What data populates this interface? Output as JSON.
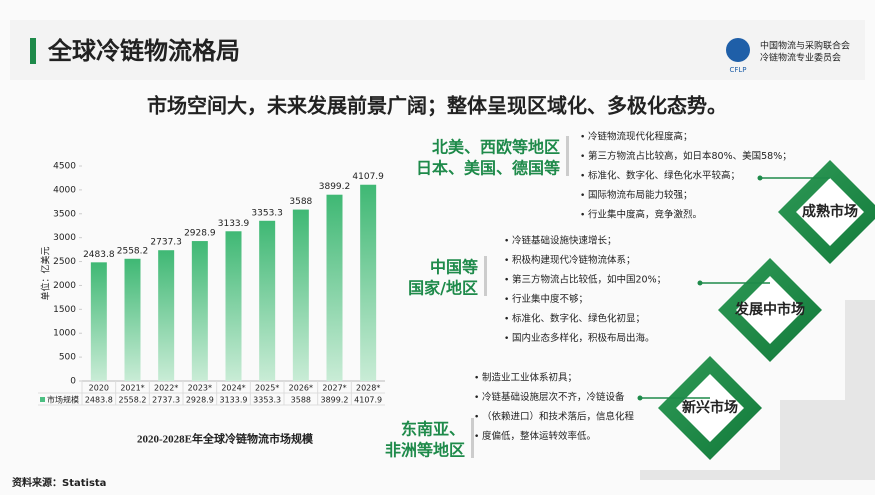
{
  "header": {
    "title": "全球冷链物流格局",
    "logo": {
      "mark": "CFLP",
      "line1": "中国物流与采购联合会",
      "line2": "冷链物流专业委员会"
    }
  },
  "subtitle": "市场空间大，未来发展前景广阔；整体呈现区域化、多极化态势。",
  "chart_data": {
    "type": "bar",
    "title": "2020-2028E年全球冷链物流市场规模",
    "y_label": "单位：亿美元",
    "categories": [
      "2020",
      "2021*",
      "2022*",
      "2023*",
      "2024*",
      "2025*",
      "2026*",
      "2027*",
      "2028*"
    ],
    "series": [
      {
        "name": "市场规模",
        "color": "#4cbf82",
        "values": [
          2483.8,
          2558.2,
          2737.3,
          2928.9,
          3133.9,
          3353.3,
          3588,
          3899.2,
          4107.9
        ]
      }
    ],
    "ylim": [
      0,
      4500
    ],
    "yticks": [
      0,
      500,
      1000,
      1500,
      2000,
      2500,
      3000,
      3500,
      4000,
      4500
    ]
  },
  "regions": [
    {
      "label": [
        "北美、西欧等地区",
        "日本、美国、德国等"
      ],
      "stage": "成熟市场",
      "points": [
        "冷链物流现代化程度高；",
        "第三方物流占比较高，如日本80%、美国58%；",
        "标准化、数字化、绿色化水平较高；",
        "国际物流布局能力较强；",
        "行业集中度高，竞争激烈。"
      ]
    },
    {
      "label": [
        "中国等",
        "国家/地区"
      ],
      "stage": "发展中市场",
      "points": [
        "冷链基础设施快速增长；",
        "积极构建现代冷链物流体系；",
        "第三方物流占比较低，如中国20%；",
        "行业集中度不够；",
        "标准化、数字化、绿色化初显；",
        "国内业态多样化，积极布局出海。"
      ]
    },
    {
      "label": [
        "东南亚、",
        "非洲等地区"
      ],
      "stage": "新兴市场",
      "points": [
        "制造业工业体系初具；",
        "冷链基础设施层次不齐，冷链设备",
        "（依赖进口）和技术落后，信息化程",
        "度偏低，整体运转效率低。"
      ]
    }
  ],
  "source": "资料来源：Statista"
}
